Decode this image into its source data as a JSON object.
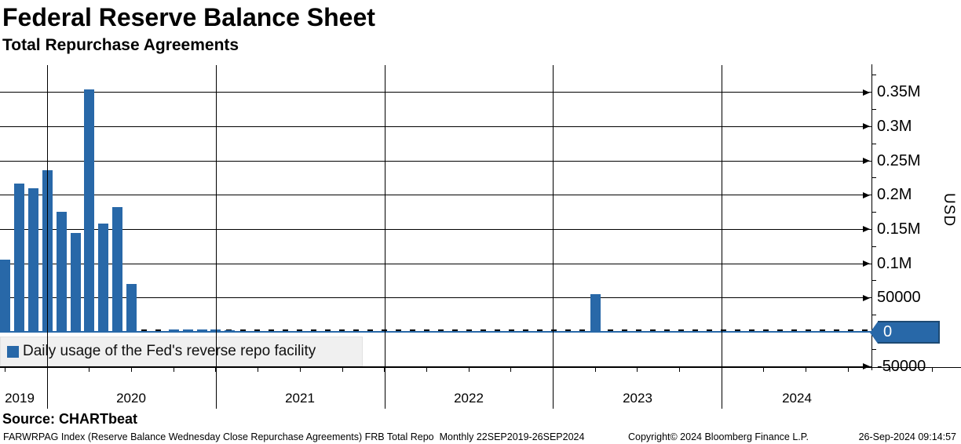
{
  "header": {
    "title": "Federal Reserve Balance Sheet",
    "subtitle": "Total Repurchase Agreements"
  },
  "legend": {
    "label": "Daily usage of the Fed's reverse repo facility",
    "swatch_color": "#2868a8"
  },
  "y_axis": {
    "title": "USD",
    "last_value_label": "0",
    "last_value_box_color": "#2868a8"
  },
  "source": {
    "label": "Source: CHARTbeat"
  },
  "footer": {
    "left": "FARWRPAG Index (Reserve Balance Wednesday Close Repurchase Agreements) FRB Total Repo  Monthly 22SEP2019-26SEP2024",
    "copyright": "Copyright© 2024 Bloomberg Finance L.P.",
    "timestamp": "26-Sep-2024 09:14:57"
  },
  "chart_data": {
    "type": "bar",
    "title": "Federal Reserve Balance Sheet",
    "subtitle": "Total Repurchase Agreements",
    "ylabel": "USD",
    "ylim": [
      -50000,
      375000
    ],
    "grid": true,
    "legend_position": "bottom-left",
    "bar_color": "#2868a8",
    "zero_line_value": 0,
    "y_ticks": [
      {
        "value": 350000,
        "label": "0.35M"
      },
      {
        "value": 300000,
        "label": "0.3M"
      },
      {
        "value": 250000,
        "label": "0.25M"
      },
      {
        "value": 200000,
        "label": "0.2M"
      },
      {
        "value": 150000,
        "label": "0.15M"
      },
      {
        "value": 100000,
        "label": "0.1M"
      },
      {
        "value": 50000,
        "label": "50000"
      },
      {
        "value": 0,
        "label": "0"
      },
      {
        "value": -50000,
        "label": "-50000"
      }
    ],
    "x_year_labels": [
      "2019",
      "2020",
      "2021",
      "2022",
      "2023",
      "2024"
    ],
    "x_range_note": "Monthly 22SEP2019-26SEP2024",
    "series": [
      {
        "name": "Daily usage of the Fed's reverse repo facility",
        "points": [
          {
            "month": "2019-09",
            "value": 105000
          },
          {
            "month": "2019-10",
            "value": 216000
          },
          {
            "month": "2019-11",
            "value": 209000
          },
          {
            "month": "2019-12",
            "value": 236000
          },
          {
            "month": "2020-01",
            "value": 175000
          },
          {
            "month": "2020-02",
            "value": 144000
          },
          {
            "month": "2020-03",
            "value": 354000
          },
          {
            "month": "2020-04",
            "value": 158000
          },
          {
            "month": "2020-05",
            "value": 182000
          },
          {
            "month": "2020-06",
            "value": 70000
          },
          {
            "month": "2020-07",
            "value": 1000
          },
          {
            "month": "2020-08",
            "value": 1500
          },
          {
            "month": "2020-09",
            "value": 3500
          },
          {
            "month": "2020-10",
            "value": 3800
          },
          {
            "month": "2020-11",
            "value": 3500
          },
          {
            "month": "2020-12",
            "value": 3800
          },
          {
            "month": "2021-01",
            "value": 2500
          },
          {
            "month": "2023-03",
            "value": 55000
          }
        ]
      }
    ]
  }
}
